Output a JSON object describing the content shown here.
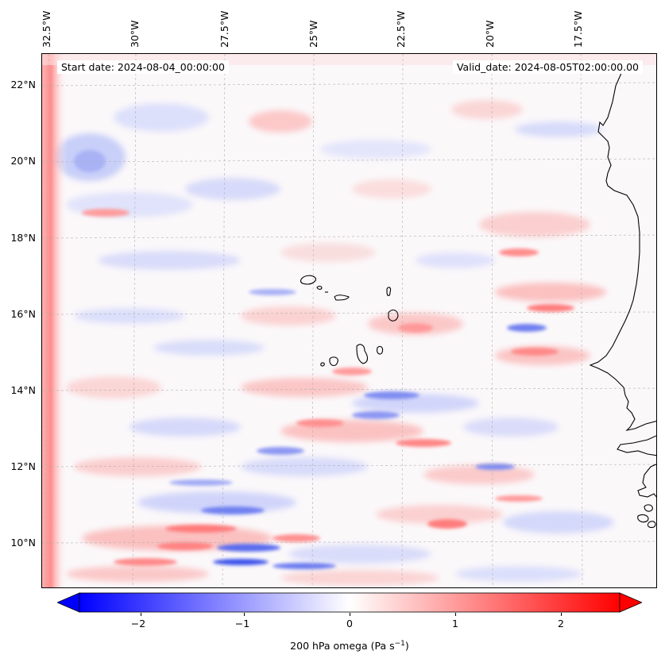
{
  "map": {
    "variable": "200 hPa omega",
    "units": "Pa s",
    "units_exponent": "−1",
    "start_date_label": "Start date: 2024-08-04_00:00:00",
    "valid_date_label": "Valid_date: 2024-08-05T02:00:00.00",
    "colormap": "bwr",
    "color_negative": "#0000ff",
    "color_zero": "#ffffff",
    "color_positive": "#ff0000",
    "coastline_color": "#000000",
    "lon_ticks": [
      "32.5°W",
      "30°W",
      "27.5°W",
      "25°W",
      "22.5°W",
      "20°W",
      "17.5°W"
    ],
    "lat_ticks": [
      "22°N",
      "20°N",
      "18°N",
      "16°N",
      "14°N",
      "12°N",
      "10°N"
    ],
    "colorbar": {
      "min": -2.6,
      "max": 2.6,
      "extend": "both",
      "tick_labels": [
        "−2",
        "−1",
        "0",
        "1",
        "2"
      ],
      "tick_values": [
        -2,
        -1,
        0,
        1,
        2
      ]
    },
    "features": [
      "Cabo Verde islands",
      "West African coastline (Senegal, The Gambia)"
    ]
  }
}
